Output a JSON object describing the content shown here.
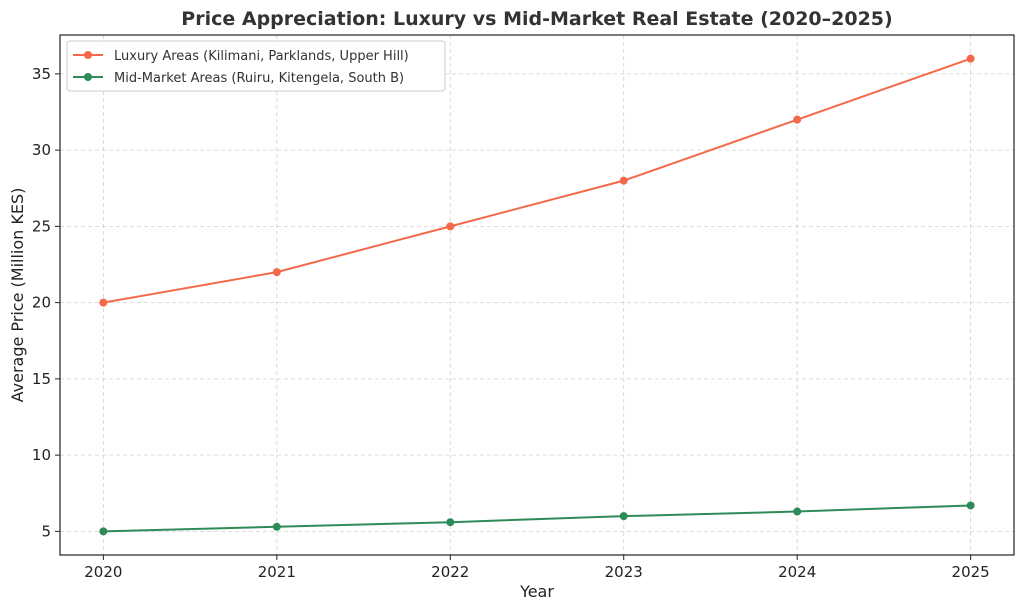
{
  "chart_data": {
    "type": "line",
    "title": "Price Appreciation: Luxury vs Mid-Market Real Estate (2020–2025)",
    "xlabel": "Year",
    "ylabel": "Average Price (Million KES)",
    "x": [
      2020,
      2021,
      2022,
      2023,
      2024,
      2025
    ],
    "x_tick_labels": [
      "2020",
      "2021",
      "2022",
      "2023",
      "2024",
      "2025"
    ],
    "y_ticks": [
      5,
      10,
      15,
      20,
      25,
      30,
      35
    ],
    "ylim": [
      3.45,
      37.55
    ],
    "xlim": [
      2019.75,
      2025.25
    ],
    "grid": true,
    "legend_position": "top-left",
    "series": [
      {
        "name": "Luxury Areas (Kilimani, Parklands, Upper Hill)",
        "color": "#f4694a",
        "marker": "circle",
        "values": [
          20,
          22,
          25,
          28,
          32,
          36
        ]
      },
      {
        "name": "Mid-Market Areas (Ruiru, Kitengela, South B)",
        "color": "#2e8b57",
        "marker": "circle",
        "values": [
          5.0,
          5.3,
          5.6,
          6.0,
          6.3,
          6.7
        ]
      }
    ]
  }
}
